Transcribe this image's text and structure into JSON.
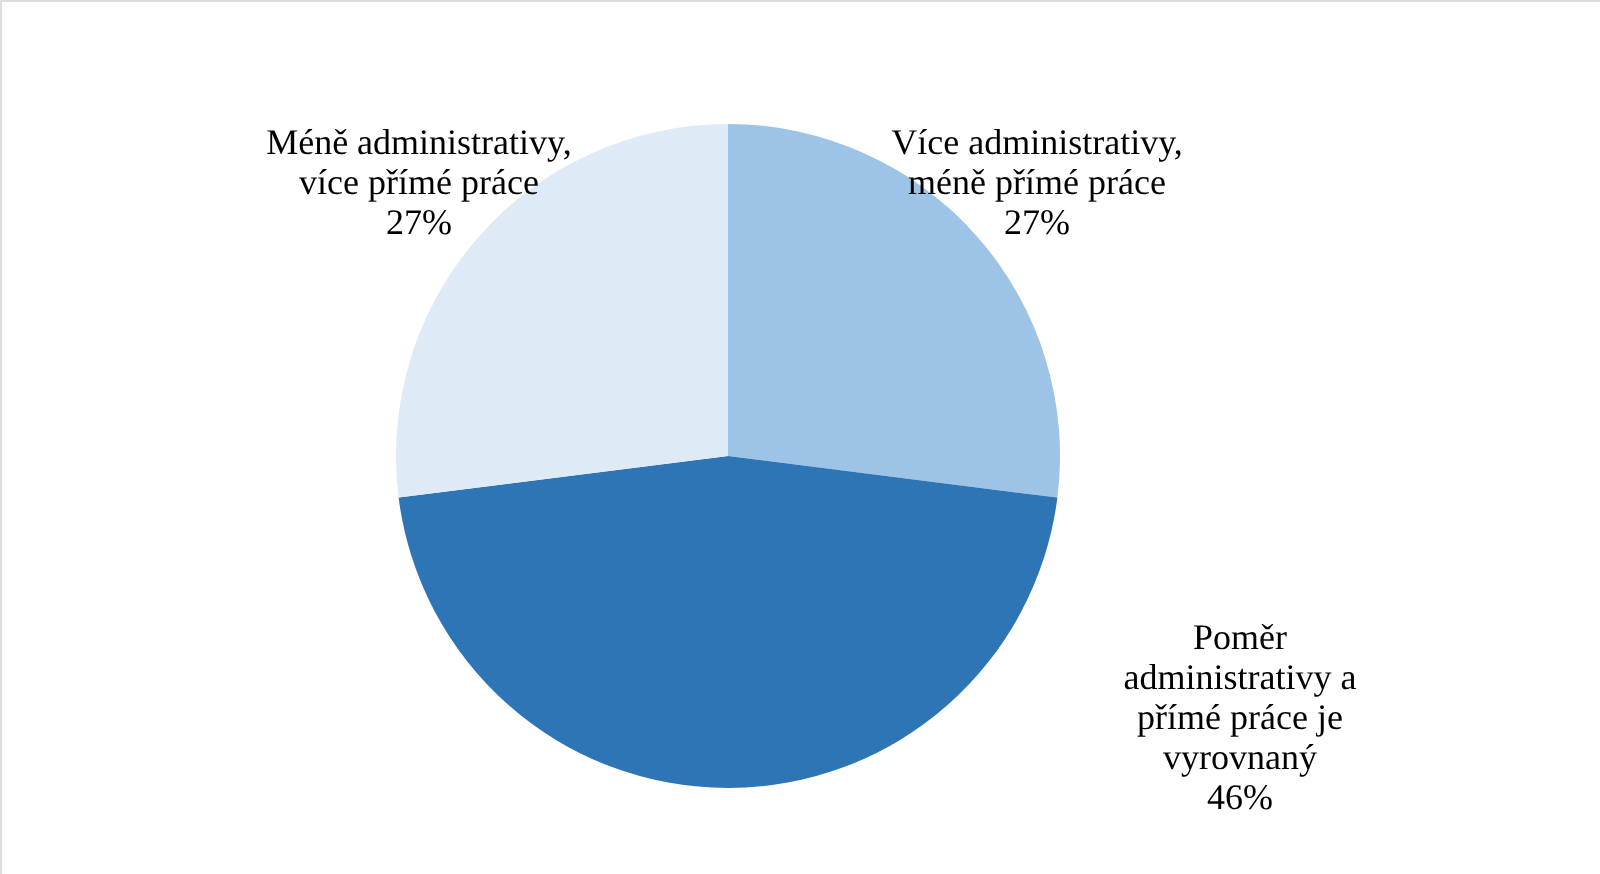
{
  "chart_data": {
    "type": "pie",
    "categories": [
      "Více administrativy, méně přímé práce",
      "Poměr administrativy a přímé práce je vyrovnaný",
      "Méně administrativy, více přímé práce"
    ],
    "values": [
      27,
      46,
      27
    ],
    "colors": [
      "#9dc3e6",
      "#2e75b6",
      "#deebf7"
    ],
    "value_labels": [
      "27%",
      "46%",
      "27%"
    ]
  }
}
